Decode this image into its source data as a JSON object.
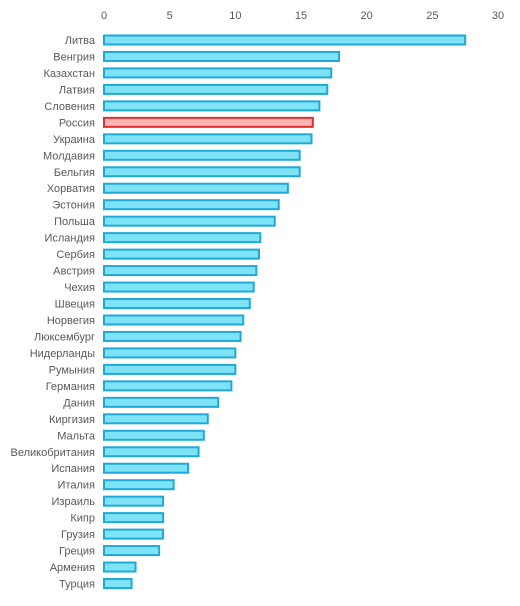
{
  "chart_data": {
    "type": "bar",
    "orientation": "horizontal",
    "title": "",
    "xlabel": "",
    "ylabel": "",
    "xlim": [
      0,
      30
    ],
    "x_ticks": [
      0,
      5,
      10,
      15,
      20,
      25,
      30
    ],
    "x_axis_position": "top",
    "grid": false,
    "legend": "none",
    "bar_color": "#7fe3f7",
    "bar_border_color": "#1fa9d8",
    "highlight_color": "#ffb3b3",
    "highlight_border_color": "#e03030",
    "highlight_category": "Россия",
    "categories": [
      "Литва",
      "Венгрия",
      "Казахстан",
      "Латвия",
      "Словения",
      "Россия",
      "Украина",
      "Молдавия",
      "Бельгия",
      "Хорватия",
      "Эстония",
      "Польша",
      "Исландия",
      "Сербия",
      "Австрия",
      "Чехия",
      "Швеция",
      "Норвегия",
      "Люксембург",
      "Нидерланды",
      "Румыния",
      "Германия",
      "Дания",
      "Киргизия",
      "Мальта",
      "Великобритания",
      "Испания",
      "Италия",
      "Израиль",
      "Кипр",
      "Грузия",
      "Греция",
      "Армения",
      "Турция"
    ],
    "values": [
      27.5,
      17.9,
      17.3,
      17.0,
      16.4,
      15.9,
      15.8,
      14.9,
      14.9,
      14.0,
      13.3,
      13.0,
      11.9,
      11.8,
      11.6,
      11.4,
      11.1,
      10.6,
      10.4,
      10.0,
      10.0,
      9.7,
      8.7,
      7.9,
      7.6,
      7.2,
      6.4,
      5.3,
      4.5,
      4.5,
      4.5,
      4.2,
      2.4,
      2.1
    ]
  }
}
